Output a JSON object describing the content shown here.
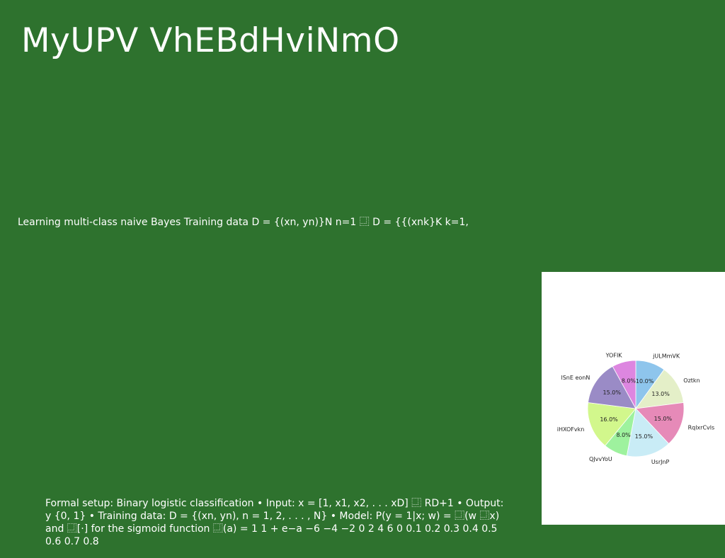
{
  "slide": {
    "title": "MyUPV VhEBdHviNmO",
    "line1": "Learning multi-class naive Bayes Training data D = {(xn, yn)}N n=1 ⿽ D = {{(xnk}K k=1,",
    "paragraph": "Formal setup: Binary logistic classification • Input: x = [1, x1, x2, . . . xD] ⿽ RD+1 • Output: y {0, 1} • Training data: D = {(xn, yn), n = 1, 2, . . . , N} • Model: P(y = 1|x; w) = ⿽(w ⿽x) and ⿽[·] for the sigmoid function ⿽(a) = 1 1 + e−a −6 −4 −2 0 2 4 6 0 0.1 0.2 0.3 0.4 0.5 0.6 0.7 0.8",
    "background_color": "#2e722e"
  },
  "chart_data": {
    "type": "pie",
    "title": "",
    "start": "top, clockwise",
    "slices": [
      {
        "label": "jULMmVK",
        "value": 10.0,
        "pct_label": "10.0%",
        "color": "#8ec5ec"
      },
      {
        "label": "Oztkn",
        "value": 13.0,
        "pct_label": "13.0%",
        "color": "#e4efc8"
      },
      {
        "label": "RqlxrCvls",
        "value": 15.0,
        "pct_label": "15.0%",
        "color": "#e68ab8"
      },
      {
        "label": "UsrJnP",
        "value": 15.0,
        "pct_label": "15.0%",
        "color": "#c9ecf6"
      },
      {
        "label": "QJvvYoU",
        "value": 8.0,
        "pct_label": "8.0%",
        "color": "#9ef29e"
      },
      {
        "label": "iHXOFvkn",
        "value": 16.0,
        "pct_label": "16.0%",
        "color": "#d2f78c"
      },
      {
        "label": "lSnE eonN",
        "value": 15.0,
        "pct_label": "15.0%",
        "color": "#9a8bc6"
      },
      {
        "label": "YOFIK",
        "value": 8.0,
        "pct_label": "8.0%",
        "color": "#dd86e0"
      }
    ]
  }
}
